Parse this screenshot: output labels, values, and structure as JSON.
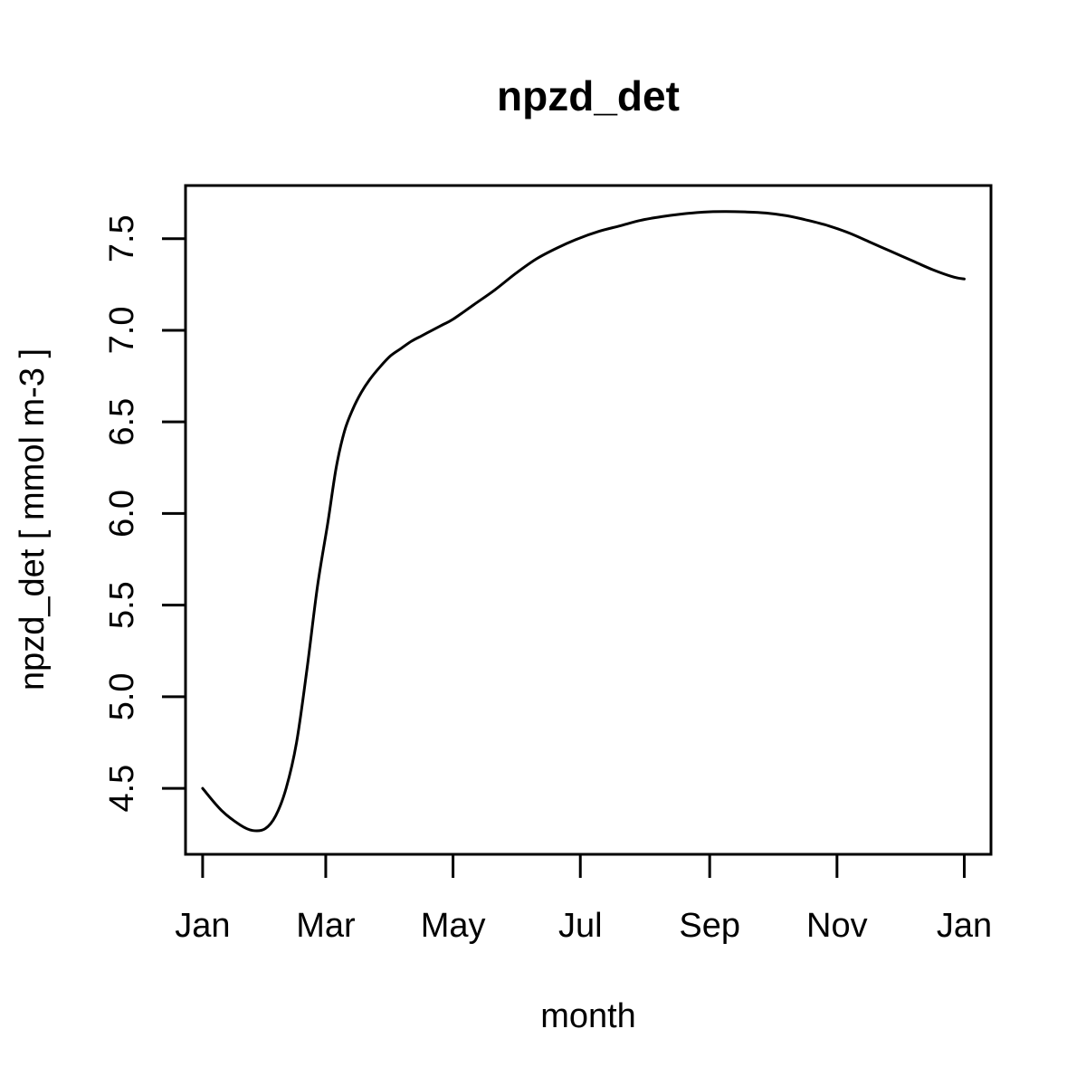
{
  "chart_data": {
    "type": "line",
    "title": "npzd_det",
    "xlabel": "month",
    "ylabel": "npzd_det [ mmol m-3 ]",
    "x_unit": "days",
    "xlim": [
      -8.2,
      377.8
    ],
    "ylim": [
      4.14,
      7.79
    ],
    "x_ticks": [
      {
        "value": 0,
        "label": "Jan"
      },
      {
        "value": 59,
        "label": "Mar"
      },
      {
        "value": 120,
        "label": "May"
      },
      {
        "value": 181,
        "label": "Jul"
      },
      {
        "value": 243,
        "label": "Sep"
      },
      {
        "value": 304,
        "label": "Nov"
      },
      {
        "value": 365,
        "label": "Jan"
      }
    ],
    "y_ticks": [
      4.5,
      5.0,
      5.5,
      6.0,
      6.5,
      7.0,
      7.5
    ],
    "y_tick_labels": [
      "4.5",
      "5.0",
      "5.5",
      "6.0",
      "6.5",
      "7.0",
      "7.5"
    ],
    "grid": false,
    "series": [
      {
        "color": "#000000",
        "x": [
          0,
          9,
          18,
          24,
          30,
          35,
          40,
          45,
          50,
          55,
          60,
          64,
          68,
          72,
          76,
          80,
          85,
          90,
          95,
          100,
          105,
          110,
          115,
          120,
          130,
          140,
          150,
          160,
          170,
          180,
          190,
          200,
          210,
          220,
          230,
          240,
          250,
          260,
          270,
          280,
          290,
          300,
          310,
          320,
          330,
          340,
          350,
          360,
          365
        ],
        "y": [
          4.5,
          4.38,
          4.3,
          4.27,
          4.28,
          4.35,
          4.5,
          4.75,
          5.15,
          5.6,
          5.95,
          6.25,
          6.45,
          6.57,
          6.66,
          6.73,
          6.8,
          6.86,
          6.9,
          6.94,
          6.97,
          7.0,
          7.03,
          7.06,
          7.14,
          7.22,
          7.31,
          7.39,
          7.45,
          7.5,
          7.54,
          7.57,
          7.6,
          7.62,
          7.635,
          7.645,
          7.648,
          7.646,
          7.64,
          7.625,
          7.6,
          7.57,
          7.53,
          7.48,
          7.43,
          7.38,
          7.33,
          7.29,
          7.28
        ]
      }
    ]
  }
}
